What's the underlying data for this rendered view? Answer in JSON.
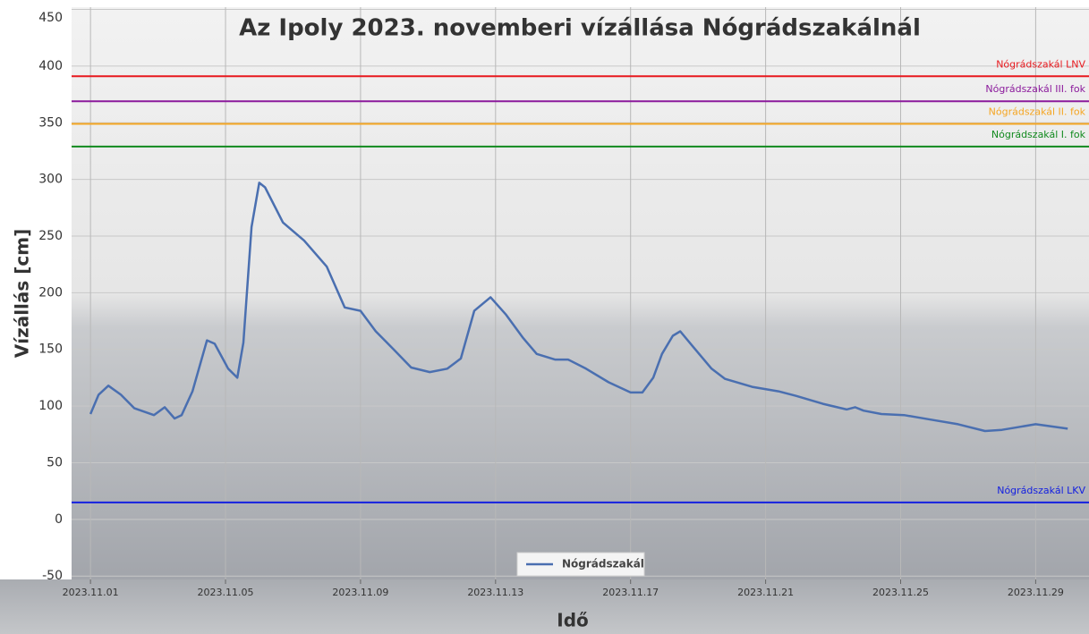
{
  "chart_data": {
    "type": "line",
    "title": "Az Ipoly 2023. novemberi vízállása Nógrádszakálnál",
    "x_label": "Idő",
    "y_label": "Vízállás [cm]",
    "xlim": [
      0.44,
      30.58
    ],
    "ylim": [
      -53,
      452
    ],
    "xticks": [
      {
        "value": 1,
        "label": "2023.11.01"
      },
      {
        "value": 5,
        "label": "2023.11.05"
      },
      {
        "value": 9,
        "label": "2023.11.09"
      },
      {
        "value": 13,
        "label": "2023.11.13"
      },
      {
        "value": 17,
        "label": "2023.11.17"
      },
      {
        "value": 21,
        "label": "2023.11.21"
      },
      {
        "value": 25,
        "label": "2023.11.25"
      },
      {
        "value": 29,
        "label": "2023.11.29"
      }
    ],
    "yticks": [
      -50,
      0,
      50,
      100,
      150,
      200,
      250,
      300,
      350,
      400,
      450
    ],
    "grid": true,
    "legend": "bottom",
    "series": [
      {
        "name": "Nógrádszakál",
        "color": "#4a6fb0",
        "x": [
          1.0,
          1.24,
          1.53,
          1.9,
          2.3,
          2.88,
          3.2,
          3.49,
          3.7,
          4.02,
          4.45,
          4.68,
          5.08,
          5.35,
          5.53,
          5.77,
          6.0,
          6.17,
          6.7,
          7.33,
          8.0,
          8.53,
          9.0,
          9.45,
          9.98,
          10.5,
          11.05,
          11.57,
          11.97,
          12.37,
          12.85,
          13.3,
          13.82,
          14.22,
          14.76,
          15.15,
          15.68,
          16.35,
          17.0,
          17.35,
          17.67,
          17.93,
          18.25,
          18.47,
          18.86,
          19.4,
          19.8,
          20.6,
          21.38,
          21.9,
          22.7,
          23.4,
          23.65,
          23.9,
          24.43,
          25.1,
          25.9,
          26.7,
          27.5,
          28.0,
          28.4,
          29.0,
          29.95
        ],
        "values": [
          93,
          110,
          118,
          110,
          98,
          92,
          99,
          89,
          92,
          113,
          158,
          155,
          133,
          125,
          156,
          258,
          297,
          293,
          262,
          246,
          223,
          187,
          184,
          166,
          150,
          134,
          130,
          133,
          142,
          184,
          196,
          181,
          160,
          146,
          141,
          141,
          133,
          121,
          112,
          112,
          125,
          146,
          162,
          166,
          152,
          133,
          124,
          117,
          113,
          109,
          102,
          97,
          99,
          96,
          93,
          92,
          88,
          84,
          78,
          79,
          81,
          84,
          80
        ]
      }
    ],
    "thresholds": [
      {
        "name": "Nógrádszakál LNV",
        "value": 391,
        "color": "#e8191e"
      },
      {
        "name": "Nógrádszakál III. fok",
        "value": 369,
        "color": "#8b1a9c"
      },
      {
        "name": "Nógrádszakál II. fok",
        "value": 349,
        "color": "#f5a623"
      },
      {
        "name": "Nógrádszakál I. fok",
        "value": 329,
        "color": "#118a1e"
      },
      {
        "name": "Nógrádszakál LKV",
        "value": 15,
        "color": "#1420e0"
      }
    ]
  }
}
